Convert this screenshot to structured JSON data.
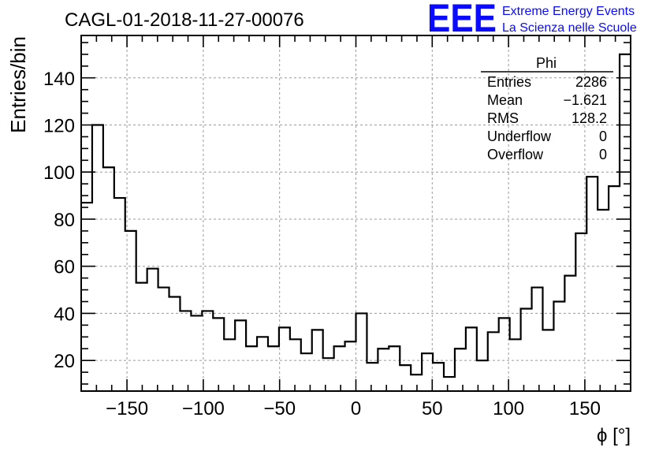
{
  "header": {
    "run_title": "CAGL-01-2018-11-27-00076",
    "logo_text": "EEE",
    "logo_line1": "Extreme Energy Events",
    "logo_line2": "La Scienza nelle Scuole"
  },
  "colors": {
    "logo": "#0a0aff",
    "histogram": "#000000",
    "grid": "#9a9a9a"
  },
  "stats_box": {
    "title": "Phi",
    "rows": [
      {
        "label": "Entries",
        "value": "2286"
      },
      {
        "label": "Mean",
        "value": "−1.621"
      },
      {
        "label": "RMS",
        "value": "128.2"
      },
      {
        "label": "Underflow",
        "value": "0"
      },
      {
        "label": "Overflow",
        "value": "0"
      }
    ]
  },
  "chart_data": {
    "type": "histogram",
    "title": "CAGL-01-2018-11-27-00076",
    "xlabel": "ϕ [°]",
    "ylabel": "Entries/bin",
    "xlim": [
      -180,
      180
    ],
    "ylim": [
      7,
      158
    ],
    "bin_width": 7.2,
    "x_ticks": [
      -150,
      -100,
      -50,
      0,
      50,
      100,
      150
    ],
    "x_tick_labels": [
      "−150",
      "−100",
      "−50",
      "0",
      "50",
      "100",
      "150"
    ],
    "y_ticks": [
      20,
      40,
      60,
      80,
      100,
      120,
      140
    ],
    "y_tick_labels": [
      "20",
      "40",
      "60",
      "80",
      "100",
      "120",
      "140"
    ],
    "grid": true,
    "values": [
      87,
      120,
      102,
      89,
      75,
      53,
      59,
      51,
      47,
      41,
      39,
      41,
      38,
      29,
      37,
      26,
      30,
      26,
      34,
      29,
      23,
      33,
      21,
      26,
      28,
      40,
      19,
      25,
      26,
      18,
      14,
      23,
      19,
      13,
      25,
      34,
      20,
      32,
      38,
      29,
      42,
      51,
      33,
      45,
      56,
      74,
      98,
      84,
      94,
      150
    ]
  }
}
